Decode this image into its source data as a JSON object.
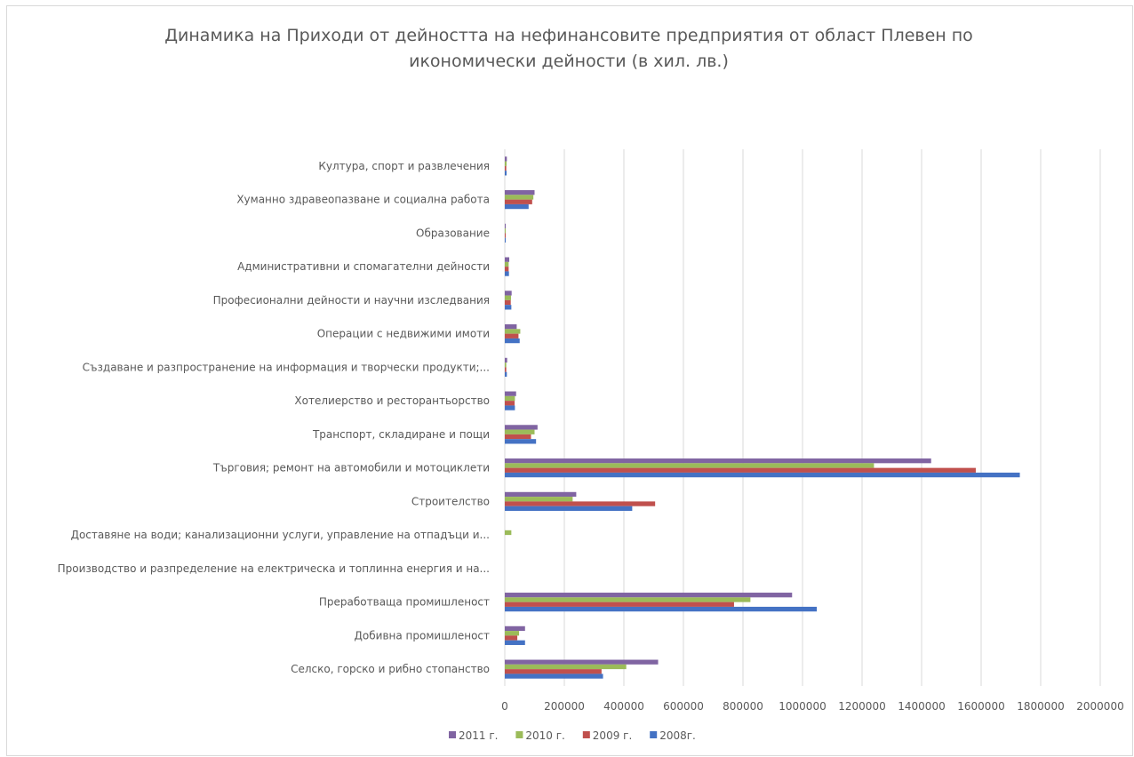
{
  "chart_data": {
    "type": "bar",
    "orientation": "horizontal",
    "title": "Динамика на Приходи от дейността на нефинансовите предприятия от област Плевен по икономически дейности (в хил. лв.)",
    "categories": [
      "Селско, горско и рибно стопанство",
      "Добивна промишленост",
      "Преработваща промишленост",
      "Производство и разпределение на електрическа и топлинна енергия и на...",
      "Доставяне на води; канализационни услуги, управление на отпадъци и...",
      "Строителство",
      "Търговия; ремонт на автомобили и мотоциклети",
      "Транспорт, складиране и пощи",
      "Хотелиерство и ресторантьорство",
      "Създаване и разпространение на информация и творчески продукти;...",
      "Операции с недвижими имоти",
      "Професионални дейности и научни изследвания",
      "Административни и спомагателни дейности",
      "Образование",
      "Хуманно здравеопазване и социална работа",
      "Култура, спорт и развлечения"
    ],
    "series": [
      {
        "name": "2008г.",
        "color": "#4472c4",
        "values": [
          330000,
          68000,
          1048000,
          0,
          0,
          428000,
          1730000,
          105000,
          34000,
          7000,
          50000,
          22000,
          14000,
          3000,
          80000,
          6000
        ]
      },
      {
        "name": "2009 г.",
        "color": "#c0504d",
        "values": [
          325000,
          42000,
          770000,
          0,
          0,
          505000,
          1582000,
          88000,
          33000,
          5000,
          46000,
          20000,
          13000,
          3000,
          92000,
          5000
        ]
      },
      {
        "name": "2010 г.",
        "color": "#9bbb59",
        "values": [
          408000,
          48000,
          825000,
          0,
          22000,
          228000,
          1240000,
          100000,
          34000,
          5000,
          52000,
          21000,
          13000,
          3000,
          96000,
          6000
        ]
      },
      {
        "name": "2011 г.",
        "color": "#8064a2",
        "values": [
          515000,
          68000,
          965000,
          0,
          0,
          240000,
          1432000,
          110000,
          38000,
          8000,
          40000,
          23000,
          15000,
          3000,
          100000,
          7000
        ]
      }
    ],
    "x_ticks": [
      "0",
      "200000",
      "400000",
      "600000",
      "800000",
      "1000000",
      "1200000",
      "1400000",
      "1600000",
      "1800000",
      "2000000"
    ],
    "xlim": [
      0,
      2000000
    ],
    "grid": true,
    "legend_position": "bottom",
    "legend_order": [
      "2011 г.",
      "2010 г.",
      "2009 г.",
      "2008г."
    ]
  }
}
